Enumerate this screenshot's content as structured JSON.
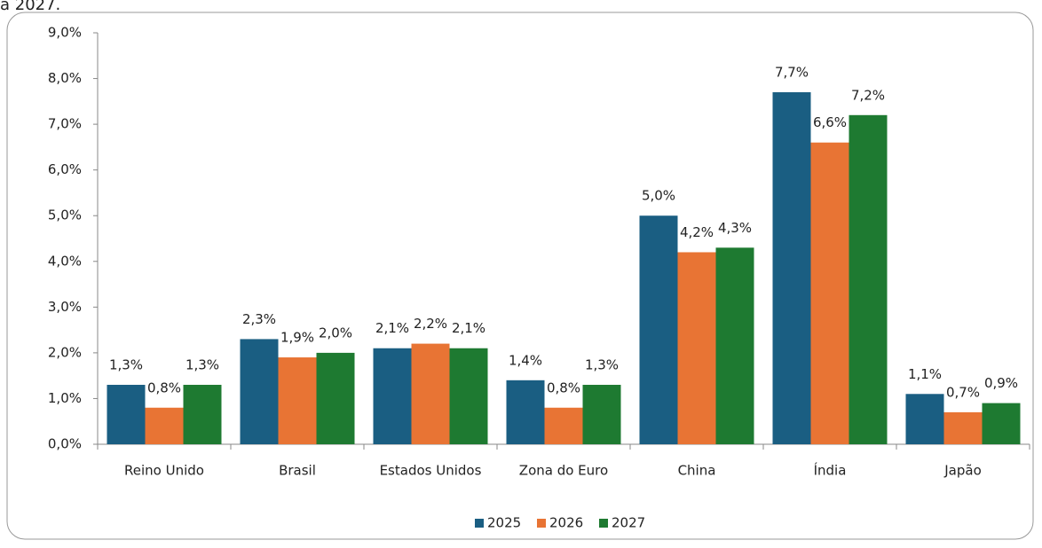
{
  "chart_data": {
    "type": "bar",
    "caption": "a 2027.",
    "categories": [
      "Reino Unido",
      "Brasil",
      "Estados Unidos",
      "Zona do Euro",
      "China",
      "Índia",
      "Japão"
    ],
    "series": [
      {
        "name": "2025",
        "color": "#1a5e82",
        "values": [
          1.3,
          2.3,
          2.1,
          1.4,
          5.0,
          7.7,
          1.1
        ],
        "value_labels": [
          "1,3%",
          "2,3%",
          "2,1%",
          "1,4%",
          "5,0%",
          "7,7%",
          "1,1%"
        ]
      },
      {
        "name": "2026",
        "color": "#e87434",
        "values": [
          0.8,
          1.9,
          2.2,
          0.8,
          4.2,
          6.6,
          0.7
        ],
        "value_labels": [
          "0,8%",
          "1,9%",
          "2,2%",
          "0,8%",
          "4,2%",
          "6,6%",
          "0,7%"
        ]
      },
      {
        "name": "2027",
        "color": "#1e7a31",
        "values": [
          1.3,
          2.0,
          2.1,
          1.3,
          4.3,
          7.2,
          0.9
        ],
        "value_labels": [
          "1,3%",
          "2,0%",
          "2,1%",
          "1,3%",
          "4,3%",
          "7,2%",
          "0,9%"
        ]
      }
    ],
    "ylim": [
      0,
      9
    ],
    "yticks": [
      {
        "value": 0,
        "label": "0,0%"
      },
      {
        "value": 1,
        "label": "1,0%"
      },
      {
        "value": 2,
        "label": "2,0%"
      },
      {
        "value": 3,
        "label": "3,0%"
      },
      {
        "value": 4,
        "label": "4,0%"
      },
      {
        "value": 5,
        "label": "5,0%"
      },
      {
        "value": 6,
        "label": "6,0%"
      },
      {
        "value": 7,
        "label": "7,0%"
      },
      {
        "value": 8,
        "label": "8,0%"
      },
      {
        "value": 9,
        "label": "9,0%"
      }
    ],
    "grid": false,
    "legend": "bottom"
  }
}
